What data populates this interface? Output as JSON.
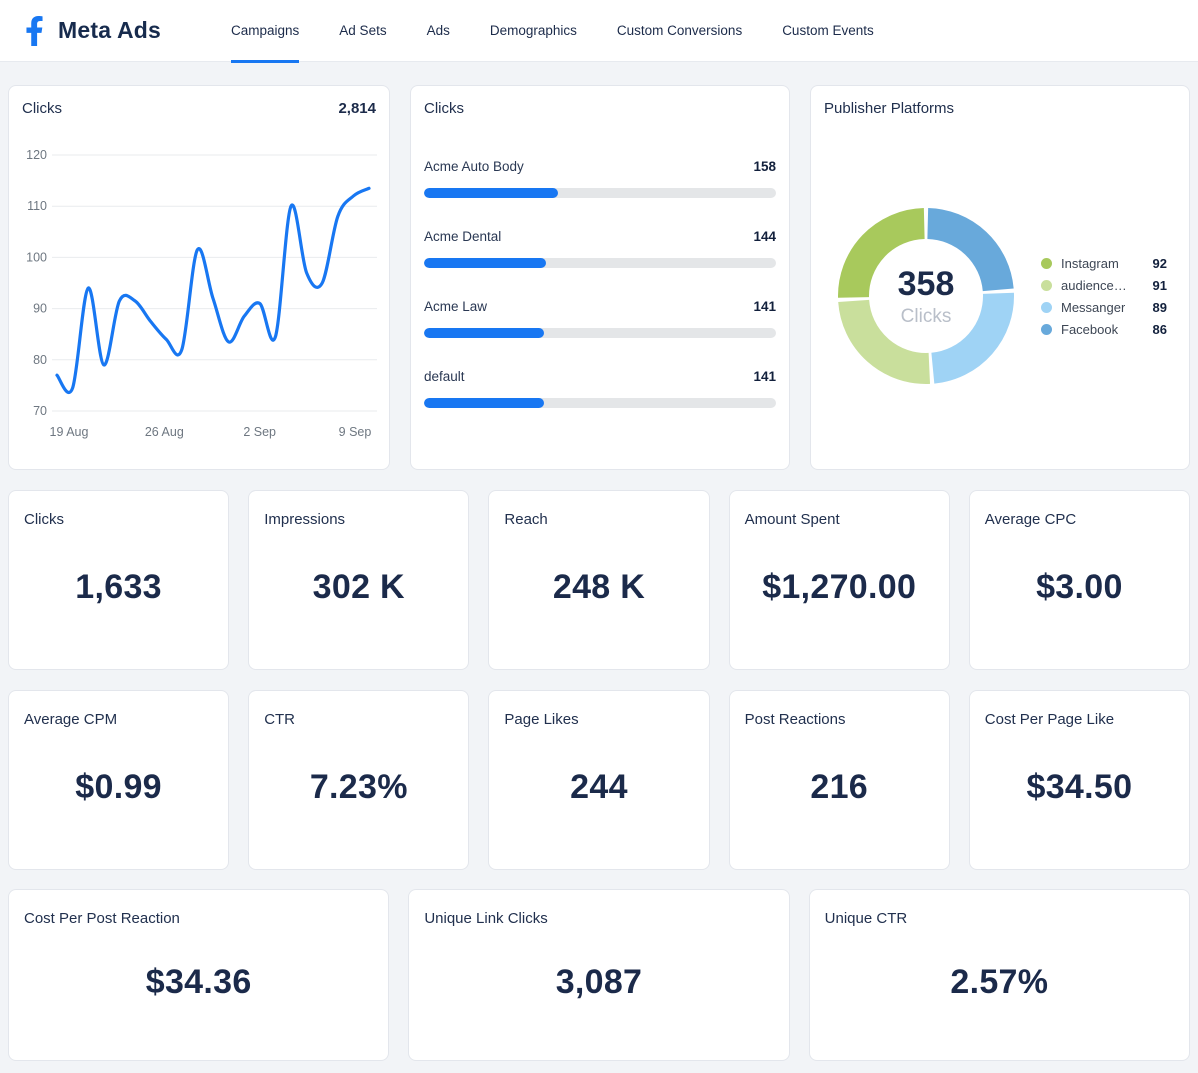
{
  "header": {
    "title": "Meta Ads",
    "logo": "facebook-icon",
    "tabs": [
      {
        "label": "Campaigns",
        "active": true
      },
      {
        "label": "Ad Sets",
        "active": false
      },
      {
        "label": "Ads",
        "active": false
      },
      {
        "label": "Demographics",
        "active": false
      },
      {
        "label": "Custom Conversions",
        "active": false
      },
      {
        "label": "Custom Events",
        "active": false
      }
    ]
  },
  "colors": {
    "accent_blue": "#1877f2",
    "navy_text": "#1c2b4a",
    "bar_track": "#e4e6e8",
    "gridline": "#e9ebee"
  },
  "chart_data": [
    {
      "id": "clicks-trend",
      "type": "line",
      "title": "Clicks",
      "total": "2,814",
      "line_color": "#1877f2",
      "ylim": [
        70,
        120
      ],
      "yticks": [
        120,
        110,
        100,
        90,
        80,
        70
      ],
      "x_tick_labels": [
        "19 Aug",
        "26 Aug",
        "2 Sep",
        "9 Sep"
      ],
      "values": [
        77,
        74.5,
        94,
        79,
        91.5,
        91.5,
        87.5,
        84,
        82,
        101.5,
        92,
        83.5,
        88.5,
        91,
        84.5,
        110,
        97,
        95,
        108,
        112,
        113.5
      ],
      "grid": true,
      "legend_position": "none"
    },
    {
      "id": "clicks-by-campaign",
      "type": "bar",
      "orientation": "horizontal",
      "title": "Clicks",
      "categories": [
        "Acme Auto Body",
        "Acme Dental",
        "Acme Law",
        "default"
      ],
      "values": [
        158,
        144,
        141,
        141
      ],
      "scale_max": 415,
      "bar_color": "#1877f2"
    },
    {
      "id": "publisher-platforms",
      "type": "pie",
      "title": "Publisher Platforms",
      "center_value": "358",
      "center_label": "Clicks",
      "start_angle_deg": 0,
      "direction": "clockwise",
      "slices": [
        {
          "label": "Facebook",
          "value": 86,
          "color": "#68a9db"
        },
        {
          "label": "Messanger",
          "value": 89,
          "color": "#9fd3f5"
        },
        {
          "label": "audience…",
          "value": 91,
          "color": "#c9df9c"
        },
        {
          "label": "Instagram",
          "value": 92,
          "color": "#a8c95c"
        }
      ],
      "legend": [
        {
          "label": "Instagram",
          "value": 92,
          "color": "#a8c95c"
        },
        {
          "label": "audience…",
          "value": 91,
          "color": "#c9df9c"
        },
        {
          "label": "Messanger",
          "value": 89,
          "color": "#9fd3f5"
        },
        {
          "label": "Facebook",
          "value": 86,
          "color": "#68a9db"
        }
      ]
    }
  ],
  "kpi_rows": [
    [
      {
        "label": "Clicks",
        "value": "1,633"
      },
      {
        "label": "Impressions",
        "value": "302 K"
      },
      {
        "label": "Reach",
        "value": "248 K"
      },
      {
        "label": "Amount Spent",
        "value": "$1,270.00"
      },
      {
        "label": "Average CPC",
        "value": "$3.00"
      }
    ],
    [
      {
        "label": "Average CPM",
        "value": "$0.99"
      },
      {
        "label": "CTR",
        "value": "7.23%"
      },
      {
        "label": "Page Likes",
        "value": "244"
      },
      {
        "label": "Post Reactions",
        "value": "216"
      },
      {
        "label": "Cost Per Page Like",
        "value": "$34.50"
      }
    ],
    [
      {
        "label": "Cost Per Post Reaction",
        "value": "$34.36"
      },
      {
        "label": "Unique Link Clicks",
        "value": "3,087"
      },
      {
        "label": "Unique CTR",
        "value": "2.57%"
      }
    ]
  ]
}
